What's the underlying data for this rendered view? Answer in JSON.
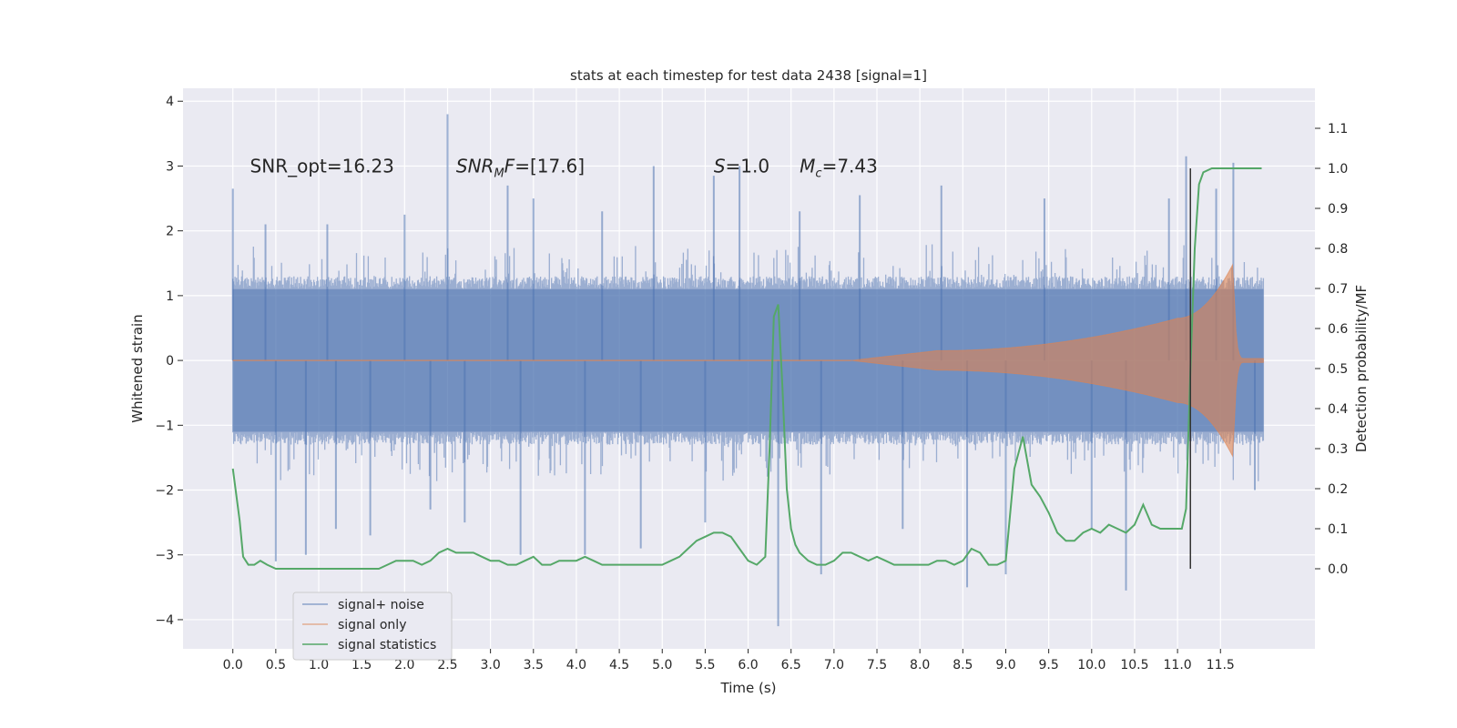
{
  "chart_data": {
    "type": "line",
    "title": "stats at each timestep for test data 2438 [signal=1]",
    "xlabel": "Time (s)",
    "ylabel_left": "Whitened strain",
    "ylabel_right": "Detection probability/MF",
    "xlim": [
      -0.58,
      12.6
    ],
    "ylim_left": [
      -4.45,
      4.2
    ],
    "ylim_right": [
      -0.2,
      1.2
    ],
    "x_ticks": [
      0.0,
      0.5,
      1.0,
      1.5,
      2.0,
      2.5,
      3.0,
      3.5,
      4.0,
      4.5,
      5.0,
      5.5,
      6.0,
      6.5,
      7.0,
      7.5,
      8.0,
      8.5,
      9.0,
      9.5,
      10.0,
      10.5,
      11.0,
      11.5
    ],
    "x_tick_labels": [
      "0.0",
      "0.5",
      "1.0",
      "1.5",
      "2.0",
      "2.5",
      "3.0",
      "3.5",
      "4.0",
      "4.5",
      "5.0",
      "5.5",
      "6.0",
      "6.5",
      "7.0",
      "7.5",
      "8.0",
      "8.5",
      "9.0",
      "9.5",
      "10.0",
      "10.5",
      "11.0",
      "11.5"
    ],
    "y_left_ticks": [
      -4,
      -3,
      -2,
      -1,
      0,
      1,
      2,
      3,
      4
    ],
    "y_left_tick_labels": [
      "−4",
      "−3",
      "−2",
      "−1",
      "0",
      "1",
      "2",
      "3",
      "4"
    ],
    "y_right_ticks": [
      0.0,
      0.1,
      0.2,
      0.3,
      0.4,
      0.5,
      0.6,
      0.7,
      0.8,
      0.9,
      1.0,
      1.1
    ],
    "y_right_tick_labels": [
      "0.0",
      "0.1",
      "0.2",
      "0.3",
      "0.4",
      "0.5",
      "0.6",
      "0.7",
      "0.8",
      "0.9",
      "1.0",
      "1.1"
    ],
    "annotations": [
      {
        "id": "snr-opt",
        "text": "SNR_opt=16.23",
        "x": 0.2,
        "y": 3.0
      },
      {
        "id": "snr-mf",
        "text": "SNR_MF=[17.6]",
        "x": 2.6,
        "y": 3.0
      },
      {
        "id": "s-value",
        "text": "S=1.0",
        "x": 5.6,
        "y": 3.0
      },
      {
        "id": "chirp-mass",
        "text": "M_c=7.43",
        "x": 6.6,
        "y": 3.0
      }
    ],
    "noise_envelope": {
      "t_start": 0.0,
      "t_end": 12.0,
      "typical_range": [
        -1.3,
        1.3
      ],
      "dense_band": [
        -1.1,
        1.1
      ]
    },
    "noise_spikes": [
      {
        "t": 0.0,
        "v": 2.65
      },
      {
        "t": 0.38,
        "v": 2.1
      },
      {
        "t": 0.5,
        "v": -3.1
      },
      {
        "t": 0.85,
        "v": -3.0
      },
      {
        "t": 1.1,
        "v": 2.1
      },
      {
        "t": 1.2,
        "v": -2.6
      },
      {
        "t": 1.6,
        "v": -2.7
      },
      {
        "t": 2.0,
        "v": 2.25
      },
      {
        "t": 2.3,
        "v": -2.3
      },
      {
        "t": 2.5,
        "v": 3.8
      },
      {
        "t": 2.7,
        "v": -2.5
      },
      {
        "t": 3.2,
        "v": 2.7
      },
      {
        "t": 3.35,
        "v": -3.0
      },
      {
        "t": 3.5,
        "v": 2.5
      },
      {
        "t": 4.1,
        "v": -3.0
      },
      {
        "t": 4.3,
        "v": 2.3
      },
      {
        "t": 4.75,
        "v": -2.9
      },
      {
        "t": 4.9,
        "v": 3.0
      },
      {
        "t": 5.5,
        "v": -2.5
      },
      {
        "t": 5.6,
        "v": 2.85
      },
      {
        "t": 5.9,
        "v": 3.0
      },
      {
        "t": 6.35,
        "v": -4.1
      },
      {
        "t": 6.6,
        "v": 2.3
      },
      {
        "t": 6.85,
        "v": -3.3
      },
      {
        "t": 7.3,
        "v": 2.55
      },
      {
        "t": 7.8,
        "v": -2.6
      },
      {
        "t": 8.25,
        "v": 2.7
      },
      {
        "t": 8.55,
        "v": -3.5
      },
      {
        "t": 9.0,
        "v": -3.3
      },
      {
        "t": 9.45,
        "v": 2.5
      },
      {
        "t": 10.0,
        "v": -2.6
      },
      {
        "t": 10.4,
        "v": -3.55
      },
      {
        "t": 10.9,
        "v": 2.5
      },
      {
        "t": 11.1,
        "v": 3.15
      },
      {
        "t": 11.45,
        "v": 2.65
      },
      {
        "t": 11.65,
        "v": 3.05
      },
      {
        "t": 11.9,
        "v": -2.0
      }
    ],
    "chirp_signal": {
      "t_start": 7.2,
      "t_merger": 11.65,
      "t_end": 12.0,
      "amplitude_start": 0.0,
      "amplitude_mid": 0.15,
      "amplitude_late": 0.65,
      "amplitude_peak": 1.5
    },
    "merger_marker_time": 11.15,
    "series": [
      {
        "name": "signal statistics",
        "axis": "right",
        "x": [
          0.0,
          0.08,
          0.12,
          0.18,
          0.25,
          0.32,
          0.4,
          0.5,
          0.6,
          0.7,
          0.8,
          0.9,
          1.0,
          1.1,
          1.2,
          1.3,
          1.4,
          1.5,
          1.6,
          1.7,
          1.8,
          1.9,
          2.0,
          2.1,
          2.2,
          2.3,
          2.4,
          2.5,
          2.6,
          2.7,
          2.8,
          2.9,
          3.0,
          3.1,
          3.2,
          3.3,
          3.4,
          3.5,
          3.6,
          3.7,
          3.8,
          3.9,
          4.0,
          4.1,
          4.2,
          4.3,
          4.4,
          4.5,
          4.6,
          4.7,
          4.8,
          4.9,
          5.0,
          5.1,
          5.2,
          5.3,
          5.4,
          5.5,
          5.6,
          5.7,
          5.8,
          5.9,
          6.0,
          6.1,
          6.2,
          6.25,
          6.3,
          6.35,
          6.4,
          6.45,
          6.5,
          6.55,
          6.6,
          6.7,
          6.8,
          6.9,
          7.0,
          7.1,
          7.2,
          7.3,
          7.4,
          7.5,
          7.6,
          7.7,
          7.8,
          7.9,
          8.0,
          8.1,
          8.2,
          8.3,
          8.4,
          8.5,
          8.6,
          8.7,
          8.8,
          8.9,
          9.0,
          9.1,
          9.2,
          9.3,
          9.4,
          9.5,
          9.6,
          9.7,
          9.8,
          9.9,
          10.0,
          10.1,
          10.2,
          10.3,
          10.4,
          10.5,
          10.6,
          10.7,
          10.8,
          10.9,
          11.0,
          11.05,
          11.1,
          11.15,
          11.2,
          11.25,
          11.3,
          11.4,
          11.5,
          11.6,
          11.7,
          11.8,
          11.9,
          11.98
        ],
        "values": [
          0.25,
          0.12,
          0.03,
          0.01,
          0.01,
          0.02,
          0.01,
          0.0,
          0.0,
          0.0,
          0.0,
          0.0,
          0.0,
          0.0,
          0.0,
          0.0,
          0.0,
          0.0,
          0.0,
          0.0,
          0.01,
          0.02,
          0.02,
          0.02,
          0.01,
          0.02,
          0.04,
          0.05,
          0.04,
          0.04,
          0.04,
          0.03,
          0.02,
          0.02,
          0.01,
          0.01,
          0.02,
          0.03,
          0.01,
          0.01,
          0.02,
          0.02,
          0.02,
          0.03,
          0.02,
          0.01,
          0.01,
          0.01,
          0.01,
          0.01,
          0.01,
          0.01,
          0.01,
          0.02,
          0.03,
          0.05,
          0.07,
          0.08,
          0.09,
          0.09,
          0.08,
          0.05,
          0.02,
          0.01,
          0.03,
          0.3,
          0.63,
          0.66,
          0.45,
          0.2,
          0.1,
          0.06,
          0.04,
          0.02,
          0.01,
          0.01,
          0.02,
          0.04,
          0.04,
          0.03,
          0.02,
          0.03,
          0.02,
          0.01,
          0.01,
          0.01,
          0.01,
          0.01,
          0.02,
          0.02,
          0.01,
          0.02,
          0.05,
          0.04,
          0.01,
          0.01,
          0.02,
          0.25,
          0.33,
          0.21,
          0.18,
          0.14,
          0.09,
          0.07,
          0.07,
          0.09,
          0.1,
          0.09,
          0.11,
          0.1,
          0.09,
          0.11,
          0.16,
          0.11,
          0.1,
          0.1,
          0.1,
          0.1,
          0.15,
          0.5,
          0.8,
          0.96,
          0.99,
          1.0,
          1.0,
          1.0,
          1.0,
          1.0,
          1.0,
          1.0
        ]
      }
    ],
    "legend": {
      "placement": "lower-left",
      "entries": [
        {
          "label": "signal+ noise",
          "color": "#4c72b0"
        },
        {
          "label": "signal only",
          "color": "#dd8452"
        },
        {
          "label": "signal statistics",
          "color": "#55a868"
        }
      ]
    },
    "colors": {
      "figure_background": "#ffffff",
      "plot_background": "#eaeaf2",
      "grid": "#ffffff",
      "noise": "#4c72b0",
      "signal": "#dd8452",
      "statistic": "#55a868",
      "marker": "#333333"
    }
  }
}
